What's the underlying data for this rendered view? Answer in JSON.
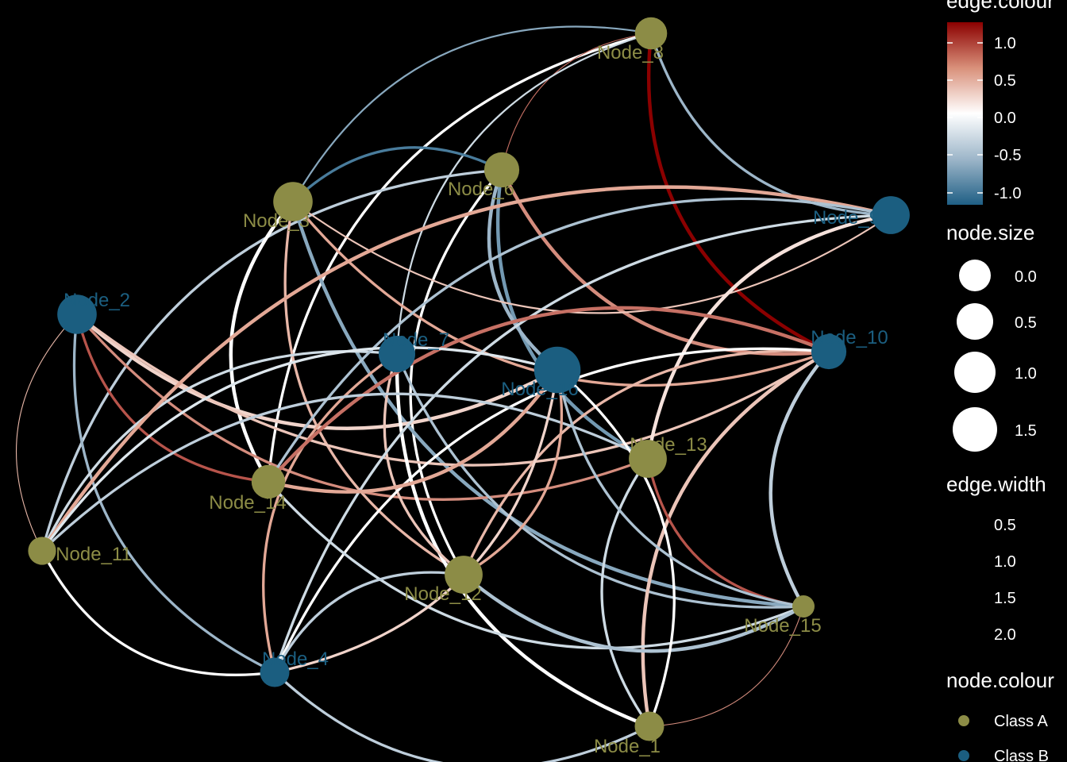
{
  "colors": {
    "background": "#000000",
    "class_a": "#8c8c46",
    "class_b": "#1b5e80",
    "edge_scale": [
      "#1f5f85",
      "#9db6c9",
      "#ffffff",
      "#e3a896",
      "#8b0000"
    ]
  },
  "nodes": [
    {
      "id": "Node_1",
      "label": "Node_1",
      "class": "Class A",
      "size": 0.5
    },
    {
      "id": "Node_2",
      "label": "Node_2",
      "class": "Class B",
      "size": 1.2
    },
    {
      "id": "Node_3",
      "label": "Node_3",
      "class": "Class A",
      "size": 1.2
    },
    {
      "id": "Node_4",
      "label": "Node_4",
      "class": "Class B",
      "size": 0.5
    },
    {
      "id": "Node_6",
      "label": "Node_6",
      "class": "Class A",
      "size": 0.9
    },
    {
      "id": "Node_7",
      "label": "Node_7",
      "class": "Class B",
      "size": 1.0
    },
    {
      "id": "Node_8",
      "label": "Node_8",
      "class": "Class A",
      "size": 0.7
    },
    {
      "id": "Node_9",
      "label": "Node_9",
      "class": "Class B",
      "size": 1.1
    },
    {
      "id": "Node_10",
      "label": "Node_10",
      "class": "Class B",
      "size": 0.9
    },
    {
      "id": "Node_11",
      "label": "Node_11",
      "class": "Class A",
      "size": 0.4
    },
    {
      "id": "Node_12",
      "label": "Node_12",
      "class": "Class A",
      "size": 1.1
    },
    {
      "id": "Node_13",
      "label": "Node_13",
      "class": "Class A",
      "size": 1.1
    },
    {
      "id": "Node_14",
      "label": "Node_14",
      "class": "Class A",
      "size": 0.8
    },
    {
      "id": "Node_15",
      "label": "Node_15",
      "class": "Class A",
      "size": 0.0
    },
    {
      "id": "Node_16",
      "label": "Node_16",
      "class": "Class B",
      "size": 1.7
    }
  ],
  "edges": [
    {
      "from": "Node_8",
      "to": "Node_10",
      "value": 1.2,
      "width": 2.0
    },
    {
      "from": "Node_8",
      "to": "Node_9",
      "value": -0.6,
      "width": 1.5
    },
    {
      "from": "Node_8",
      "to": "Node_3",
      "value": -0.7,
      "width": 1.0
    },
    {
      "from": "Node_8",
      "to": "Node_14",
      "value": 0.0,
      "width": 1.5
    },
    {
      "from": "Node_8",
      "to": "Node_6",
      "value": 0.8,
      "width": 0.5
    },
    {
      "from": "Node_8",
      "to": "Node_7",
      "value": -0.3,
      "width": 1.0
    },
    {
      "from": "Node_6",
      "to": "Node_10",
      "value": 0.7,
      "width": 2.0
    },
    {
      "from": "Node_6",
      "to": "Node_3",
      "value": -1.0,
      "width": 1.5
    },
    {
      "from": "Node_6",
      "to": "Node_13",
      "value": -0.8,
      "width": 2.0
    },
    {
      "from": "Node_6",
      "to": "Node_16",
      "value": -0.6,
      "width": 2.0
    },
    {
      "from": "Node_6",
      "to": "Node_11",
      "value": -0.4,
      "width": 1.5
    },
    {
      "from": "Node_6",
      "to": "Node_12",
      "value": 0.0,
      "width": 1.5
    },
    {
      "from": "Node_3",
      "to": "Node_10",
      "value": 0.6,
      "width": 1.5
    },
    {
      "from": "Node_3",
      "to": "Node_15",
      "value": -0.7,
      "width": 2.0
    },
    {
      "from": "Node_3",
      "to": "Node_14",
      "value": 0.0,
      "width": 2.0
    },
    {
      "from": "Node_3",
      "to": "Node_12",
      "value": 0.5,
      "width": 1.5
    },
    {
      "from": "Node_3",
      "to": "Node_9",
      "value": 0.4,
      "width": 1.0
    },
    {
      "from": "Node_2",
      "to": "Node_16",
      "value": 0.3,
      "width": 2.0
    },
    {
      "from": "Node_2",
      "to": "Node_13",
      "value": 0.7,
      "width": 1.5
    },
    {
      "from": "Node_2",
      "to": "Node_14",
      "value": 0.9,
      "width": 1.5
    },
    {
      "from": "Node_2",
      "to": "Node_11",
      "value": 0.5,
      "width": 0.5
    },
    {
      "from": "Node_2",
      "to": "Node_4",
      "value": -0.6,
      "width": 1.5
    },
    {
      "from": "Node_2",
      "to": "Node_10",
      "value": 0.4,
      "width": 1.5
    },
    {
      "from": "Node_7",
      "to": "Node_4",
      "value": 0.6,
      "width": 1.5
    },
    {
      "from": "Node_7",
      "to": "Node_15",
      "value": -0.5,
      "width": 1.5
    },
    {
      "from": "Node_7",
      "to": "Node_1",
      "value": 0.0,
      "width": 2.0
    },
    {
      "from": "Node_7",
      "to": "Node_12",
      "value": 0.4,
      "width": 1.5
    },
    {
      "from": "Node_7",
      "to": "Node_11",
      "value": -0.3,
      "width": 1.5
    },
    {
      "from": "Node_9",
      "to": "Node_11",
      "value": 0.6,
      "width": 2.0
    },
    {
      "from": "Node_9",
      "to": "Node_14",
      "value": -0.5,
      "width": 1.5
    },
    {
      "from": "Node_9",
      "to": "Node_4",
      "value": -0.3,
      "width": 1.5
    },
    {
      "from": "Node_9",
      "to": "Node_13",
      "value": 0.2,
      "width": 2.0
    },
    {
      "from": "Node_10",
      "to": "Node_14",
      "value": 0.8,
      "width": 2.0
    },
    {
      "from": "Node_10",
      "to": "Node_15",
      "value": -0.4,
      "width": 2.0
    },
    {
      "from": "Node_10",
      "to": "Node_12",
      "value": 0.5,
      "width": 1.5
    },
    {
      "from": "Node_10",
      "to": "Node_4",
      "value": 0.0,
      "width": 1.5
    },
    {
      "from": "Node_10",
      "to": "Node_1",
      "value": 0.4,
      "width": 2.0
    },
    {
      "from": "Node_13",
      "to": "Node_15",
      "value": 0.9,
      "width": 1.5
    },
    {
      "from": "Node_13",
      "to": "Node_11",
      "value": -0.4,
      "width": 1.5
    },
    {
      "from": "Node_13",
      "to": "Node_1",
      "value": -0.3,
      "width": 1.5
    },
    {
      "from": "Node_14",
      "to": "Node_16",
      "value": 0.6,
      "width": 2.0
    },
    {
      "from": "Node_14",
      "to": "Node_15",
      "value": -0.3,
      "width": 1.5
    },
    {
      "from": "Node_12",
      "to": "Node_15",
      "value": -0.5,
      "width": 2.0
    },
    {
      "from": "Node_12",
      "to": "Node_16",
      "value": 0.6,
      "width": 1.5
    },
    {
      "from": "Node_12",
      "to": "Node_4",
      "value": -0.4,
      "width": 1.5
    },
    {
      "from": "Node_11",
      "to": "Node_4",
      "value": 0.0,
      "width": 1.5
    },
    {
      "from": "Node_4",
      "to": "Node_16",
      "value": 0.3,
      "width": 1.5
    },
    {
      "from": "Node_4",
      "to": "Node_1",
      "value": -0.4,
      "width": 1.5
    },
    {
      "from": "Node_1",
      "to": "Node_15",
      "value": 0.7,
      "width": 0.5
    },
    {
      "from": "Node_1",
      "to": "Node_16",
      "value": 0.0,
      "width": 1.5
    },
    {
      "from": "Node_16",
      "to": "Node_15",
      "value": -0.5,
      "width": 1.5
    },
    {
      "from": "Node_16",
      "to": "Node_11",
      "value": -0.2,
      "width": 1.5
    }
  ],
  "legend": {
    "edge_colour": {
      "title": "edge.colour",
      "ticks": [
        "1.0",
        "0.5",
        "0.0",
        "-0.5",
        "-1.0"
      ]
    },
    "node_size": {
      "title": "node.size",
      "items": [
        "0.0",
        "0.5",
        "1.0",
        "1.5"
      ]
    },
    "edge_width": {
      "title": "edge.width",
      "items": [
        "0.5",
        "1.0",
        "1.5",
        "2.0"
      ]
    },
    "node_colour": {
      "title": "node.colour",
      "items": [
        "Class A",
        "Class B"
      ]
    }
  }
}
